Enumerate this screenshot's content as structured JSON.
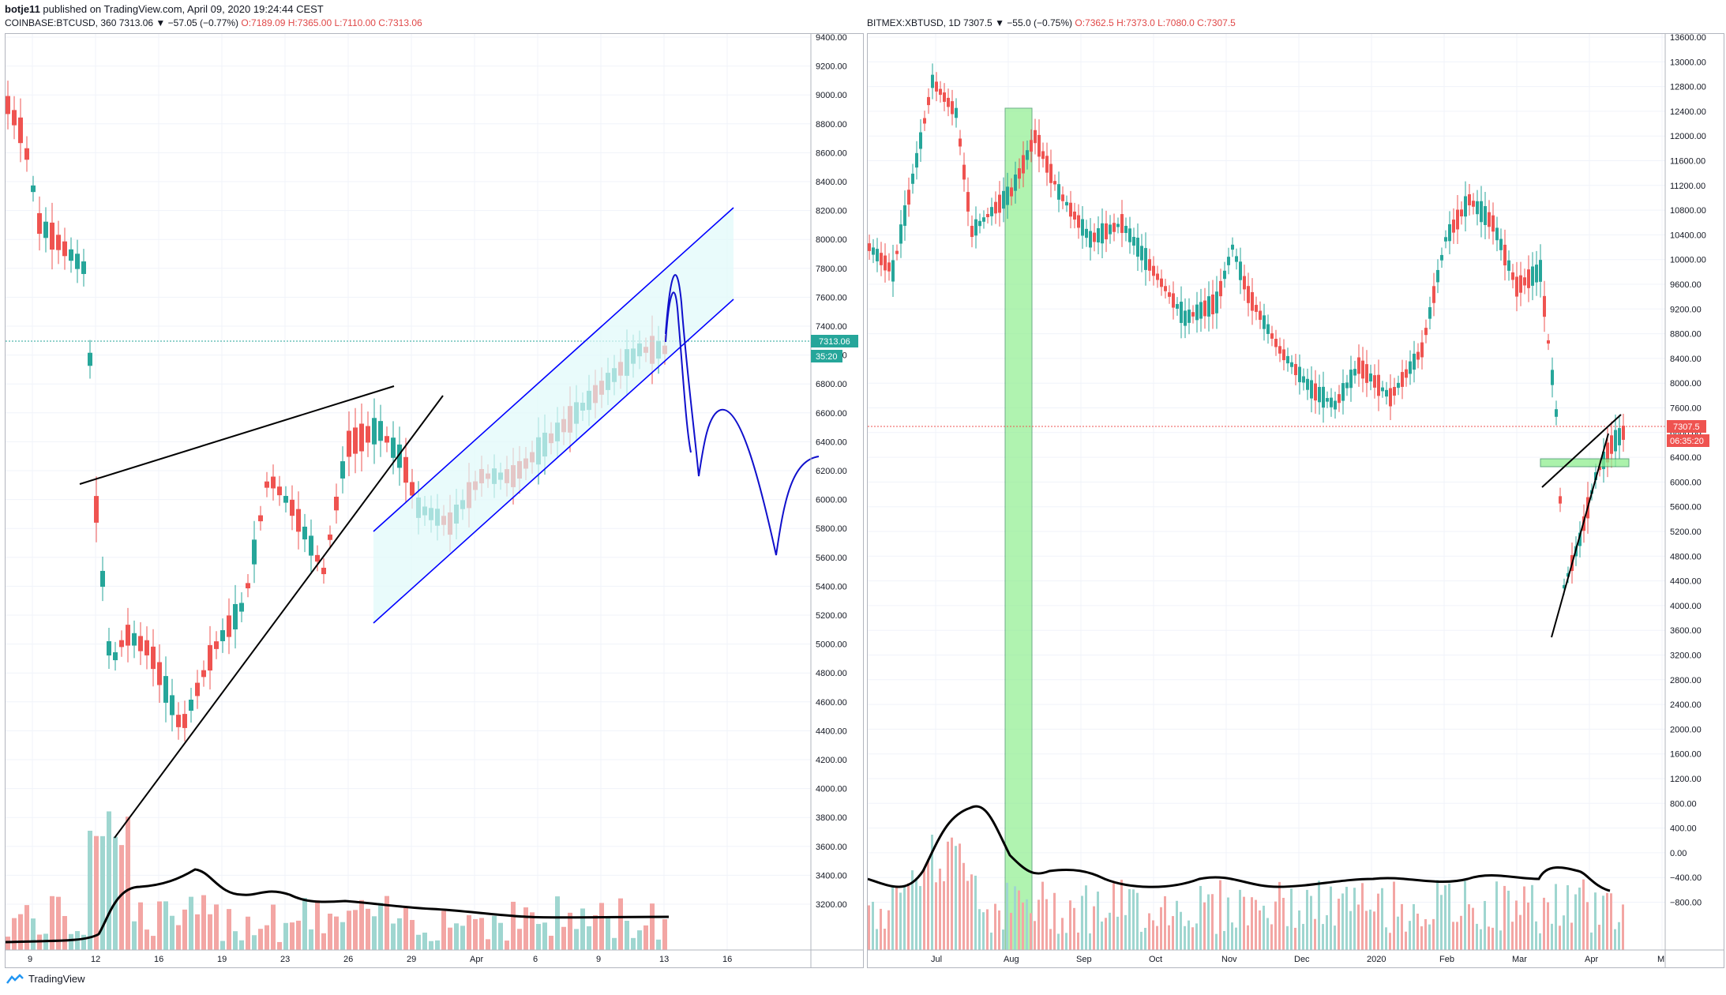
{
  "header": {
    "author": "botje11",
    "published_text": "published on TradingView.com, April 09, 2020 19:24:44 CEST"
  },
  "left_chart": {
    "symbol": "COINBASE:BTCUSD, 360",
    "change": "7313.06 ▼ −57.05 (−0.77%)",
    "ohlc": "O:7189.09  H:7365.00  L:7110.00  C:7313.06",
    "last_price": "7313.06",
    "countdown": "35:20",
    "y_ticks": [
      "9400.00",
      "9200.00",
      "9000.00",
      "8800.00",
      "8600.00",
      "8400.00",
      "8200.00",
      "8000.00",
      "7800.00",
      "7600.00",
      "7400.00",
      "7000.00",
      "6800.00",
      "6600.00",
      "6400.00",
      "6200.00",
      "6000.00",
      "5800.00",
      "5600.00",
      "5400.00",
      "5200.00",
      "5000.00",
      "4800.00",
      "4600.00",
      "4400.00",
      "4200.00",
      "4000.00",
      "3800.00",
      "3600.00",
      "3400.00",
      "3200.00"
    ],
    "x_ticks": [
      "9",
      "12",
      "16",
      "19",
      "23",
      "26",
      "29",
      "Apr",
      "6",
      "9",
      "13",
      "16"
    ]
  },
  "right_chart": {
    "symbol": "BITMEX:XBTUSD, 1D",
    "change": "7307.5 ▼ −55.0 (−0.75%)",
    "ohlc": "O:7362.5  H:7373.0  L:7080.0  C:7307.5",
    "last_price": "7307.5",
    "countdown": "06:35:20",
    "y_ticks": [
      "13600.00",
      "13000.00",
      "12800.00",
      "12400.00",
      "12000.00",
      "11600.00",
      "11200.00",
      "10800.00",
      "10400.00",
      "10000.00",
      "9600.00",
      "9200.00",
      "8800.00",
      "8400.00",
      "8000.00",
      "7600.00",
      "6800.00",
      "6400.00",
      "6000.00",
      "5600.00",
      "5200.00",
      "4800.00",
      "4400.00",
      "4000.00",
      "3600.00",
      "3200.00",
      "2800.00",
      "2400.00",
      "2000.00",
      "1600.00",
      "1200.00",
      "800.00",
      "400.00",
      "0.00",
      "−400.00",
      "−800.00"
    ],
    "x_ticks": [
      "Jul",
      "Aug",
      "Sep",
      "Oct",
      "Nov",
      "Dec",
      "2020",
      "Feb",
      "Mar",
      "Apr",
      "M"
    ]
  },
  "footer": {
    "brand": "TradingView"
  },
  "colors": {
    "up": "#26a69a",
    "down": "#ef5350",
    "channel": "#0000ff",
    "green_zone": "#90ee90"
  }
}
